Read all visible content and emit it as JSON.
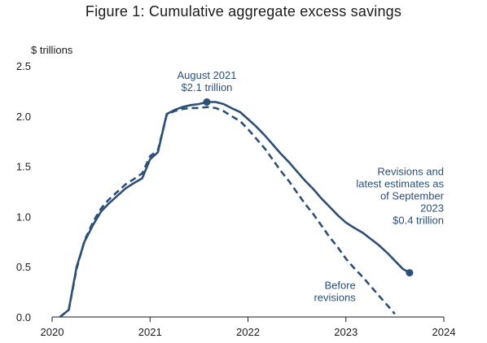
{
  "chart_data": {
    "type": "line",
    "title": "Figure 1: Cumulative aggregate excess savings",
    "ylabel": "$ trillions",
    "xlabel": "",
    "xlim": [
      2020,
      2024
    ],
    "ylim": [
      0,
      2.5
    ],
    "x_ticks": [
      "2020",
      "2021",
      "2022",
      "2023",
      "2024"
    ],
    "y_ticks": [
      "0.0",
      "0.5",
      "1.0",
      "1.5",
      "2.0",
      "2.5"
    ],
    "grid": false,
    "color": "#2b4f77",
    "series": [
      {
        "name": "Revisions and latest estimates as of September 2023",
        "style": "solid",
        "points": [
          [
            2020.08,
            0.0
          ],
          [
            2020.17,
            0.07
          ],
          [
            2020.25,
            0.5
          ],
          [
            2020.33,
            0.75
          ],
          [
            2020.42,
            0.92
          ],
          [
            2020.5,
            1.05
          ],
          [
            2020.58,
            1.13
          ],
          [
            2020.67,
            1.21
          ],
          [
            2020.75,
            1.28
          ],
          [
            2020.83,
            1.33
          ],
          [
            2020.92,
            1.38
          ],
          [
            2021.0,
            1.57
          ],
          [
            2021.08,
            1.64
          ],
          [
            2021.17,
            2.02
          ],
          [
            2021.25,
            2.06
          ],
          [
            2021.33,
            2.09
          ],
          [
            2021.42,
            2.11
          ],
          [
            2021.5,
            2.12
          ],
          [
            2021.58,
            2.14
          ],
          [
            2021.67,
            2.14
          ],
          [
            2021.75,
            2.12
          ],
          [
            2021.83,
            2.08
          ],
          [
            2021.92,
            2.04
          ],
          [
            2022.0,
            1.97
          ],
          [
            2022.08,
            1.9
          ],
          [
            2022.17,
            1.81
          ],
          [
            2022.25,
            1.72
          ],
          [
            2022.33,
            1.63
          ],
          [
            2022.42,
            1.54
          ],
          [
            2022.5,
            1.45
          ],
          [
            2022.58,
            1.36
          ],
          [
            2022.67,
            1.27
          ],
          [
            2022.75,
            1.18
          ],
          [
            2022.83,
            1.1
          ],
          [
            2022.92,
            1.01
          ],
          [
            2023.0,
            0.94
          ],
          [
            2023.08,
            0.89
          ],
          [
            2023.17,
            0.84
          ],
          [
            2023.25,
            0.78
          ],
          [
            2023.33,
            0.72
          ],
          [
            2023.42,
            0.64
          ],
          [
            2023.5,
            0.56
          ],
          [
            2023.58,
            0.48
          ],
          [
            2023.65,
            0.44
          ]
        ]
      },
      {
        "name": "Before revisions",
        "style": "dashed",
        "points": [
          [
            2020.08,
            0.0
          ],
          [
            2020.17,
            0.07
          ],
          [
            2020.25,
            0.48
          ],
          [
            2020.33,
            0.76
          ],
          [
            2020.42,
            0.95
          ],
          [
            2020.5,
            1.08
          ],
          [
            2020.58,
            1.17
          ],
          [
            2020.67,
            1.25
          ],
          [
            2020.75,
            1.32
          ],
          [
            2020.83,
            1.37
          ],
          [
            2020.92,
            1.43
          ],
          [
            2021.0,
            1.6
          ],
          [
            2021.08,
            1.66
          ],
          [
            2021.17,
            2.01
          ],
          [
            2021.25,
            2.05
          ],
          [
            2021.33,
            2.07
          ],
          [
            2021.42,
            2.08
          ],
          [
            2021.5,
            2.08
          ],
          [
            2021.58,
            2.09
          ],
          [
            2021.67,
            2.08
          ],
          [
            2021.75,
            2.05
          ],
          [
            2021.83,
            2.0
          ],
          [
            2021.92,
            1.95
          ],
          [
            2022.0,
            1.87
          ],
          [
            2022.08,
            1.78
          ],
          [
            2022.17,
            1.68
          ],
          [
            2022.25,
            1.57
          ],
          [
            2022.33,
            1.46
          ],
          [
            2022.42,
            1.35
          ],
          [
            2022.5,
            1.24
          ],
          [
            2022.58,
            1.13
          ],
          [
            2022.67,
            1.02
          ],
          [
            2022.75,
            0.91
          ],
          [
            2022.83,
            0.8
          ],
          [
            2022.92,
            0.69
          ],
          [
            2023.0,
            0.58
          ],
          [
            2023.08,
            0.49
          ],
          [
            2023.17,
            0.4
          ],
          [
            2023.25,
            0.31
          ],
          [
            2023.33,
            0.22
          ],
          [
            2023.42,
            0.12
          ],
          [
            2023.5,
            0.03
          ]
        ]
      }
    ],
    "markers": [
      {
        "x": 2021.58,
        "y": 2.14
      },
      {
        "x": 2023.65,
        "y": 0.44
      }
    ],
    "annotations": [
      {
        "lines": [
          "August 2021",
          "$2.1 trillion"
        ],
        "anchor": "middle",
        "x": 2021.58,
        "y": 2.37
      },
      {
        "lines": [
          "Revisions and",
          "latest estimates as",
          "of September",
          "2023",
          "$0.4 trillion"
        ],
        "anchor": "end",
        "x": 2024.0,
        "y": 1.41
      },
      {
        "lines": [
          "Before",
          "revisions"
        ],
        "anchor": "end",
        "x": 2023.1,
        "y": 0.28
      }
    ]
  }
}
